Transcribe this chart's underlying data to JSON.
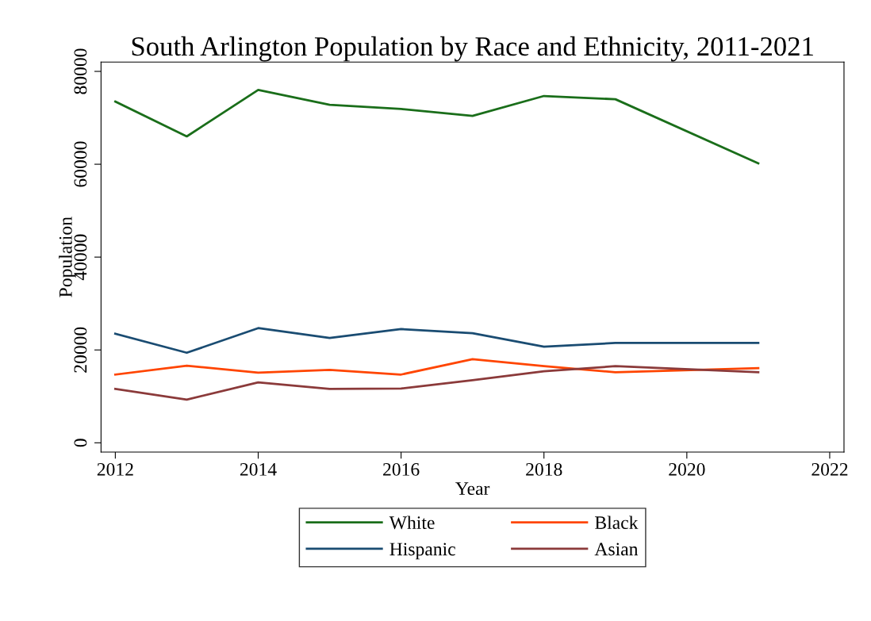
{
  "chart_data": {
    "type": "line",
    "title": "South Arlington Population by Race and Ethnicity, 2011-2021",
    "xlabel": "Year",
    "ylabel": "Population",
    "x": [
      2012,
      2013,
      2014,
      2015,
      2016,
      2017,
      2018,
      2019,
      2021
    ],
    "series": [
      {
        "name": "White",
        "color": "#1a6e1a",
        "values": [
          73500,
          66000,
          76000,
          72800,
          71900,
          70400,
          74700,
          74000,
          60200
        ]
      },
      {
        "name": "Black",
        "color": "#ff4500",
        "values": [
          14700,
          16600,
          15100,
          15700,
          14700,
          18000,
          16500,
          15200,
          16100
        ]
      },
      {
        "name": "Hispanic",
        "color": "#1a4c72",
        "values": [
          23500,
          19400,
          24700,
          22600,
          24500,
          23600,
          20700,
          21500,
          21500
        ]
      },
      {
        "name": "Asian",
        "color": "#8b3a3a",
        "values": [
          11600,
          9300,
          13000,
          11600,
          11700,
          13500,
          15400,
          16500,
          15200
        ]
      }
    ],
    "xlim": [
      2011.8,
      2022.2
    ],
    "xticks": [
      2012,
      2014,
      2016,
      2018,
      2020,
      2022
    ],
    "ylim": [
      -2000,
      82000
    ],
    "yticks": [
      0,
      20000,
      40000,
      60000,
      80000
    ],
    "grid": false,
    "legend": "bottom",
    "marker": "none",
    "line_style": "solid"
  }
}
